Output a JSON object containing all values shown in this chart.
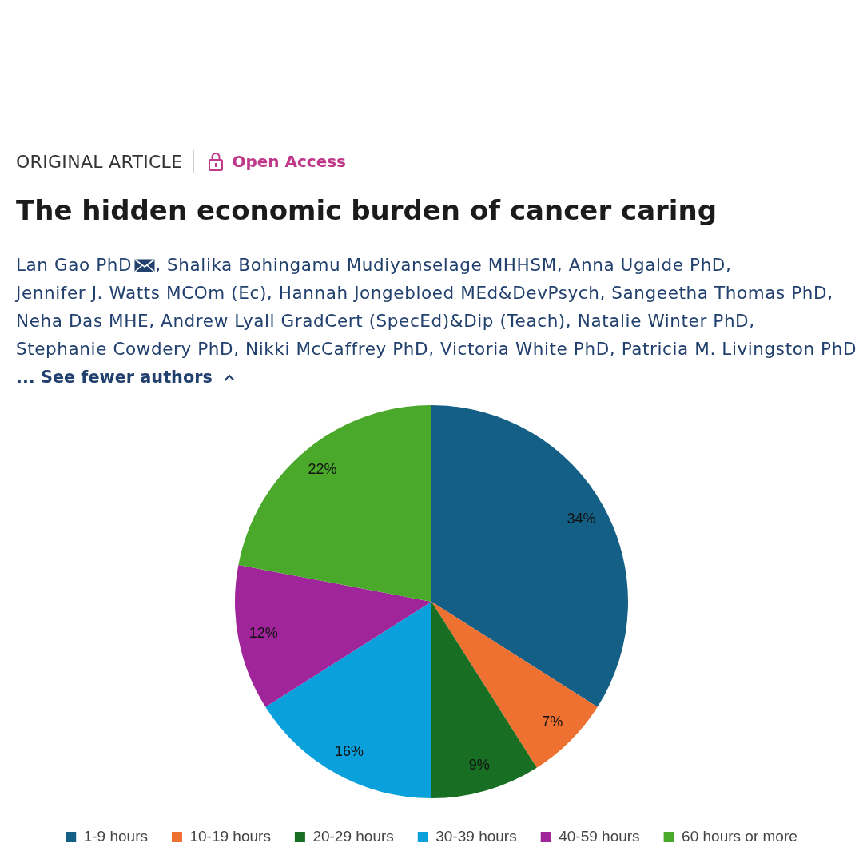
{
  "chart_data": {
    "type": "pie",
    "title": "The hidden economic burden of cancer caring",
    "annotations": [
      "ORIGINAL ARTICLE",
      "Open Access",
      "Lan Gao PhD",
      ", Shalika Bohingamu Mudiyanselage MHHSM, Anna Ugalde PhD,",
      "Jennifer J. Watts MCOm (Ec), Hannah Jongebloed MEd&DevPsych, Sangeetha Thomas PhD,",
      "Neha Das MHE, Andrew Lyall GradCert (SpecEd)&Dip (Teach), Natalie Winter PhD,",
      "Stephanie Cowdery PhD, Nikki McCaffrey PhD, Victoria White PhD, Patricia M. Livingston PhD",
      "... See fewer authors"
    ],
    "categories": [
      "1-9 hours",
      "10-19 hours",
      "20-29 hours",
      "30-39 hours",
      "40-59 hours",
      "60 hours or more"
    ],
    "values": [
      34,
      7,
      9,
      16,
      12,
      22
    ],
    "colors": [
      "#135f85",
      "#ee7131",
      "#186e22",
      "#0aa0dc",
      "#a0259a",
      "#4aa82a"
    ],
    "value_labels": [
      "34%",
      "7%",
      "9%",
      "16%",
      "12%",
      "22%"
    ],
    "legend": "bottom"
  }
}
